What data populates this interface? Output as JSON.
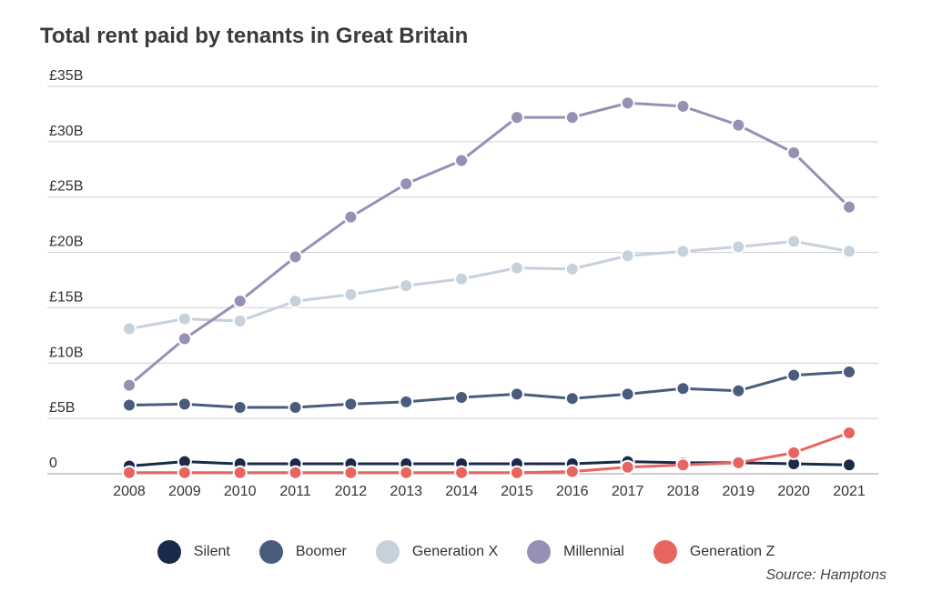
{
  "chart_data": {
    "type": "line",
    "title": "Total rent paid by tenants in Great Britain",
    "x": [
      2008,
      2009,
      2010,
      2011,
      2012,
      2013,
      2014,
      2015,
      2016,
      2017,
      2018,
      2019,
      2020,
      2021
    ],
    "y_ticks": [
      "0",
      "£5B",
      "£10B",
      "£15B",
      "£20B",
      "£25B",
      "£30B",
      "£35B"
    ],
    "ylim": [
      0,
      35
    ],
    "grid": "horizontal",
    "legend_position": "bottom",
    "series": [
      {
        "name": "Silent",
        "color": "#1b2a4a",
        "values": [
          0.7,
          1.1,
          0.9,
          0.9,
          0.9,
          0.9,
          0.9,
          0.9,
          0.9,
          1.1,
          1.0,
          1.0,
          0.9,
          0.8
        ]
      },
      {
        "name": "Boomer",
        "color": "#4a5c7c",
        "values": [
          6.2,
          6.3,
          6.0,
          6.0,
          6.3,
          6.5,
          6.9,
          7.2,
          6.8,
          7.2,
          7.7,
          7.5,
          8.9,
          9.2
        ]
      },
      {
        "name": "Generation X",
        "color": "#c7d1dc",
        "values": [
          13.1,
          14.0,
          13.8,
          15.6,
          16.2,
          17.0,
          17.6,
          18.6,
          18.5,
          19.7,
          20.1,
          20.5,
          21.0,
          20.1
        ]
      },
      {
        "name": "Millennial",
        "color": "#9790b5",
        "values": [
          8.0,
          12.2,
          15.6,
          19.6,
          23.2,
          26.2,
          28.3,
          32.2,
          32.2,
          33.5,
          33.2,
          31.5,
          29.0,
          24.1
        ]
      },
      {
        "name": "Generation Z",
        "color": "#e8645f",
        "values": [
          0.1,
          0.1,
          0.1,
          0.1,
          0.1,
          0.1,
          0.1,
          0.1,
          0.2,
          0.6,
          0.8,
          1.0,
          1.9,
          3.7
        ]
      }
    ],
    "source": "Source: Hamptons"
  }
}
